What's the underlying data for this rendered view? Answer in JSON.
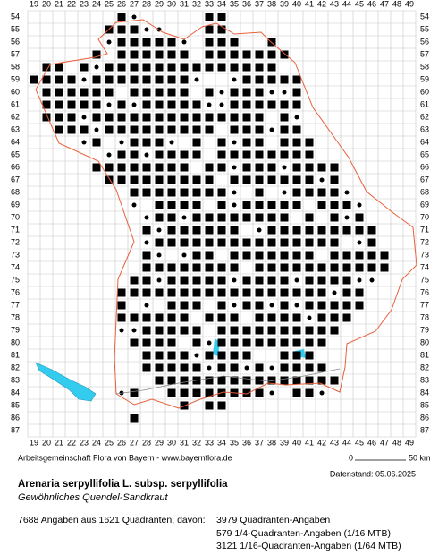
{
  "map": {
    "col_labels": [
      19,
      20,
      21,
      22,
      23,
      24,
      25,
      26,
      27,
      28,
      29,
      30,
      31,
      32,
      33,
      34,
      35,
      36,
      37,
      38,
      39,
      40,
      41,
      42,
      43,
      44,
      45,
      46,
      47,
      48,
      49
    ],
    "row_labels": [
      54,
      55,
      56,
      57,
      58,
      59,
      60,
      61,
      62,
      63,
      64,
      65,
      66,
      67,
      68,
      69,
      70,
      71,
      72,
      73,
      74,
      75,
      76,
      77,
      78,
      79,
      80,
      81,
      82,
      83,
      84,
      85,
      86,
      87
    ],
    "credit": "Arbeitsgemeinschaft Flora von Bayern - www.bayernflora.de",
    "scale_start": "0",
    "scale_end": "50 km",
    "data_date": "Datenstand: 05.06.2025",
    "title": "Arenaria serpyllifolia L. subsp. serpyllifolia",
    "subtitle": "Gewöhnliches Quendel-Sandkraut",
    "summary": "7688 Angaben aus 1621 Quadranten, davon:",
    "details": [
      "3979 Quadranten-Angaben",
      "579 1/4-Quadranten-Angaben (1/16 MTB)",
      "3121 1/16-Quadranten-Angaben (1/64 MTB)"
    ]
  }
}
